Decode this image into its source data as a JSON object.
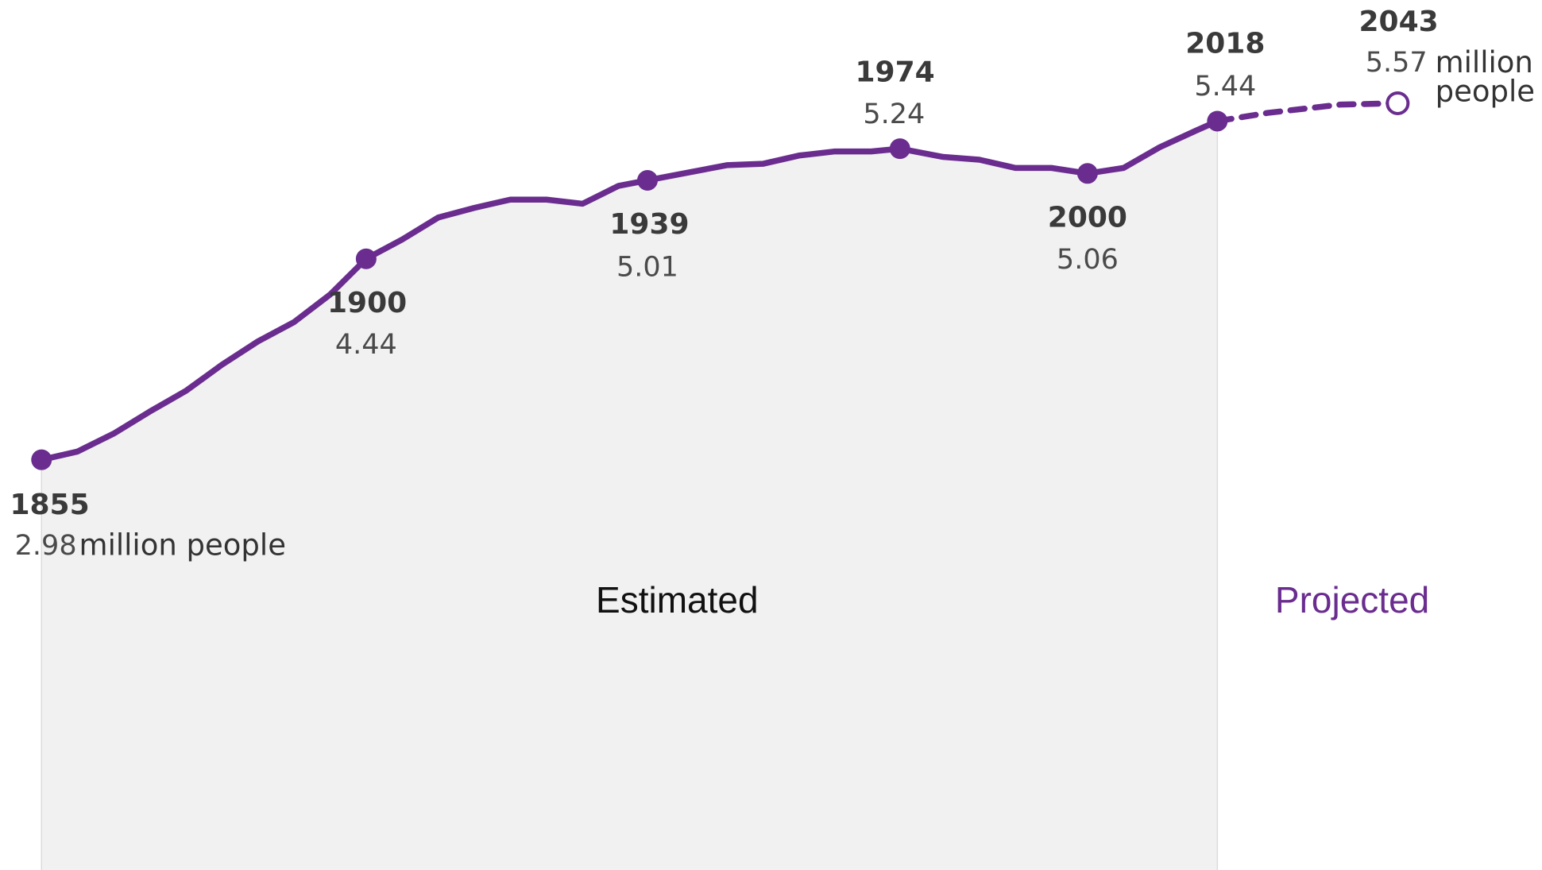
{
  "chart_data": {
    "type": "line",
    "xlim": [
      1855,
      2043
    ],
    "ylim": [
      0,
      6.32
    ],
    "unit": "million people",
    "series": [
      {
        "name": "Estimated",
        "color": "#6a2d8f",
        "x": [
          1855,
          1860,
          1865,
          1870,
          1875,
          1880,
          1885,
          1890,
          1895,
          1900,
          1905,
          1910,
          1915,
          1920,
          1925,
          1930,
          1935,
          1939,
          1945,
          1950,
          1955,
          1960,
          1965,
          1970,
          1974,
          1980,
          1985,
          1990,
          1995,
          2000,
          2005,
          2010,
          2015,
          2018
        ],
        "values": [
          2.98,
          3.04,
          3.17,
          3.33,
          3.48,
          3.67,
          3.84,
          3.98,
          4.18,
          4.44,
          4.58,
          4.74,
          4.81,
          4.87,
          4.87,
          4.84,
          4.97,
          5.01,
          5.07,
          5.12,
          5.13,
          5.19,
          5.22,
          5.22,
          5.24,
          5.18,
          5.16,
          5.1,
          5.1,
          5.06,
          5.1,
          5.25,
          5.37,
          5.44
        ]
      },
      {
        "name": "Projected",
        "color": "#6a2d8f",
        "dashed": true,
        "x": [
          2018,
          2025,
          2030,
          2035,
          2043
        ],
        "values": [
          5.44,
          5.5,
          5.53,
          5.56,
          5.57
        ]
      }
    ],
    "points": [
      {
        "year": 1855,
        "value": 2.98
      },
      {
        "year": 1900,
        "value": 4.44
      },
      {
        "year": 1939,
        "value": 5.01
      },
      {
        "year": 1974,
        "value": 5.24
      },
      {
        "year": 2000,
        "value": 5.06
      },
      {
        "year": 2018,
        "value": 5.44
      },
      {
        "year": 2043,
        "value": 5.57
      }
    ]
  }
}
